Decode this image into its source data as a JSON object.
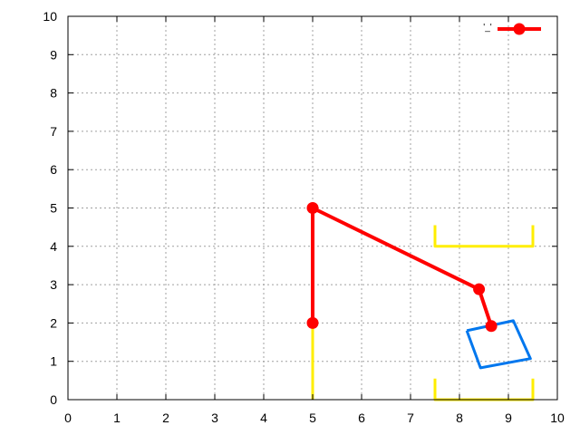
{
  "chart_data": {
    "type": "line",
    "title": "",
    "xlabel": "",
    "ylabel": "",
    "xlim": [
      0,
      10
    ],
    "ylim": [
      0,
      10
    ],
    "xticks": [
      "0",
      "1",
      "2",
      "3",
      "4",
      "5",
      "6",
      "7",
      "8",
      "9",
      "10"
    ],
    "yticks": [
      "0",
      "1",
      "2",
      "3",
      "4",
      "5",
      "6",
      "7",
      "8",
      "9",
      "10"
    ],
    "grid": true,
    "legend": {
      "placement": "top-right",
      "label": "'_'"
    },
    "series": [
      {
        "color": "#ff0000",
        "style": "line-with-circle-markers",
        "points": [
          [
            5,
            2
          ],
          [
            5,
            5
          ],
          [
            8.4,
            2.88
          ],
          [
            8.65,
            1.92
          ]
        ]
      },
      {
        "color": "#ffee00",
        "style": "line",
        "points": [
          [
            5,
            0
          ],
          [
            5,
            2
          ]
        ]
      },
      {
        "color": "#ffee00",
        "style": "line",
        "points": [
          [
            7.5,
            4.55
          ],
          [
            7.5,
            4
          ],
          [
            9.5,
            4
          ],
          [
            9.5,
            4.55
          ]
        ]
      },
      {
        "color": "#ffee00",
        "style": "line",
        "points": [
          [
            7.5,
            0.55
          ],
          [
            7.5,
            0
          ],
          [
            9.5,
            0
          ],
          [
            9.5,
            0.55
          ]
        ]
      },
      {
        "color": "#0077ee",
        "style": "closed-line",
        "points": [
          [
            8.15,
            1.8
          ],
          [
            9.1,
            2.06
          ],
          [
            9.45,
            1.07
          ],
          [
            8.43,
            0.83
          ],
          [
            8.15,
            1.8
          ]
        ]
      }
    ]
  }
}
